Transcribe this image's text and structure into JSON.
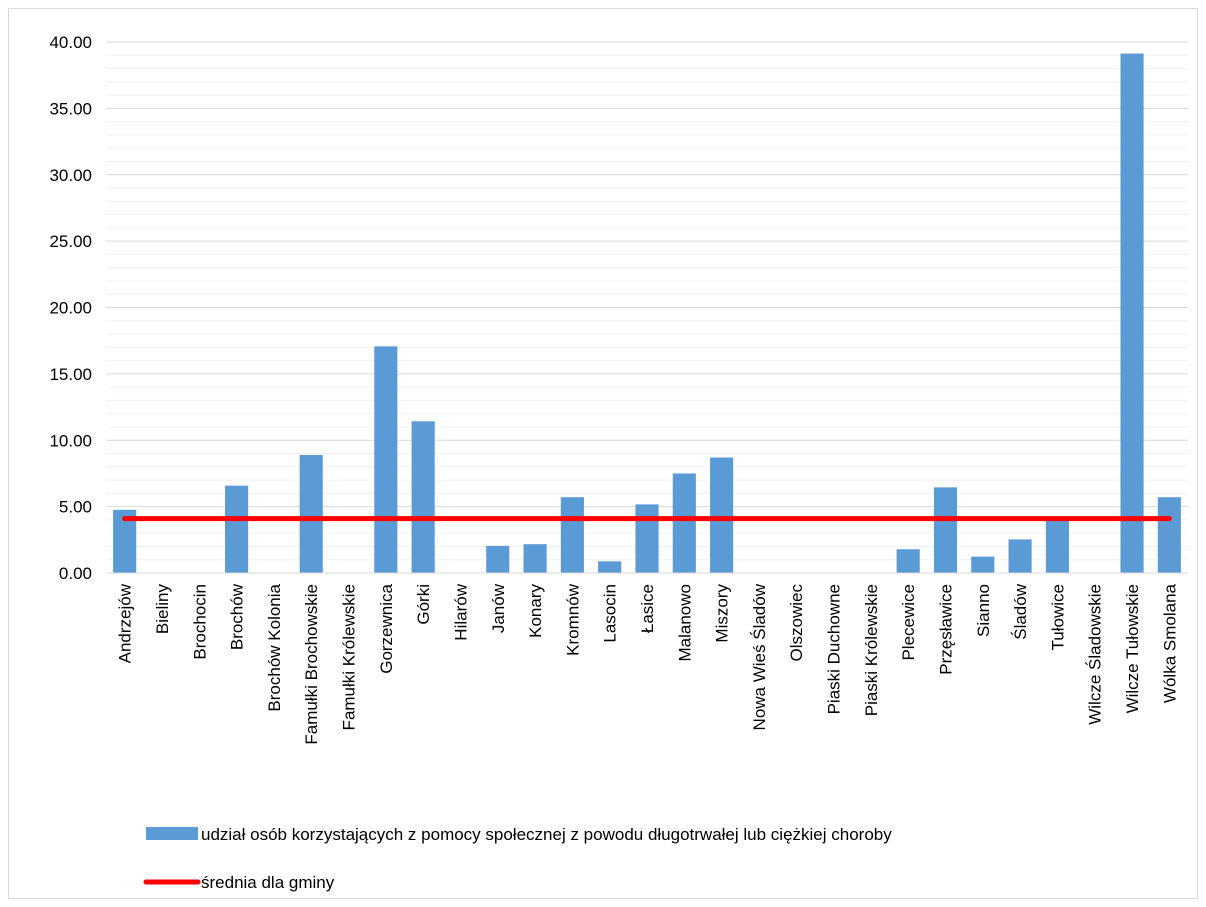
{
  "chart_data": {
    "type": "bar",
    "categories": [
      "Andrzejów",
      "Bieliny",
      "Brochocin",
      "Brochów",
      "Brochów Kolonia",
      "Famułki Brochowskie",
      "Famułki Królewskie",
      "Gorzewnica",
      "Górki",
      "Hilarów",
      "Janów",
      "Konary",
      "Kromnów",
      "Lasocin",
      "Łasice",
      "Malanowo",
      "Miszory",
      "Nowa Wieś Śladów",
      "Olszowiec",
      "Piaski Duchowne",
      "Piaski Królewskie",
      "Plecewice",
      "Przęsławice",
      "Sianno",
      "Śladów",
      "Tułowice",
      "Wilcze Śladowskie",
      "Wilcze Tułowskie",
      "Wólka Smolana"
    ],
    "series": [
      {
        "name": "udział osób korzystających z pomocy społecznej z powodu długotrwałej lub ciężkiej choroby",
        "type": "bar",
        "color": "#5b9bd5",
        "values": [
          4.76,
          0,
          0,
          6.58,
          0,
          8.89,
          0,
          17.07,
          11.43,
          0,
          2.04,
          2.17,
          5.71,
          0.88,
          5.17,
          7.5,
          8.7,
          0,
          0,
          0,
          0,
          1.79,
          6.45,
          1.23,
          2.53,
          4.08,
          0,
          39.13,
          5.71
        ]
      },
      {
        "name": "średnia dla gminy",
        "type": "line",
        "color": "#ff0000",
        "value": 4.1
      }
    ],
    "ylim": [
      0,
      40
    ],
    "yticks": [
      "0.00",
      "5.00",
      "10.00",
      "15.00",
      "20.00",
      "25.00",
      "30.00",
      "35.00",
      "40.00"
    ],
    "grid": true,
    "legend_position": "bottom"
  }
}
